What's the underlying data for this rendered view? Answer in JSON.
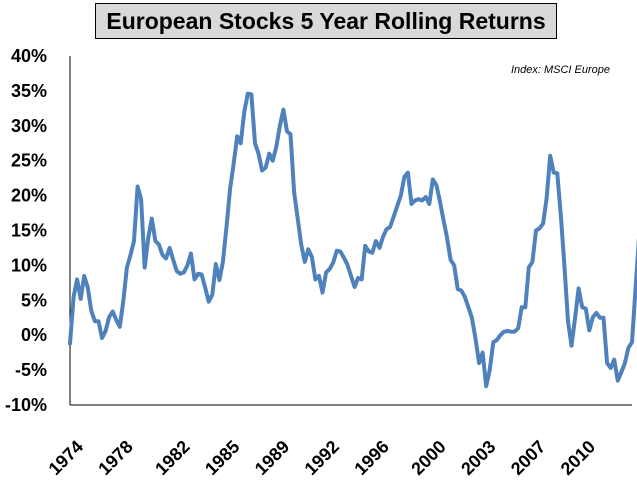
{
  "chart_data": {
    "type": "line",
    "title": "European Stocks 5 Year Rolling Returns",
    "annotation": "Index: MSCI Europe",
    "ylim": [
      -0.1,
      0.4
    ],
    "y_ticks": [
      {
        "value": 0.4,
        "label": "40%"
      },
      {
        "value": 0.35,
        "label": "35%"
      },
      {
        "value": 0.3,
        "label": "30%"
      },
      {
        "value": 0.25,
        "label": "25%"
      },
      {
        "value": 0.2,
        "label": "20%"
      },
      {
        "value": 0.15,
        "label": "15%"
      },
      {
        "value": 0.1,
        "label": "10%"
      },
      {
        "value": 0.05,
        "label": "5%"
      },
      {
        "value": 0.0,
        "label": "0%"
      },
      {
        "value": -0.05,
        "label": "-5%"
      },
      {
        "value": -0.1,
        "label": "-10%"
      }
    ],
    "xlim": [
      1974.0,
      2013.5
    ],
    "x_ticks": [
      {
        "value": 1974.0,
        "label": "1974"
      },
      {
        "value": 1977.5,
        "label": "1978"
      },
      {
        "value": 1981.5,
        "label": "1982"
      },
      {
        "value": 1985.0,
        "label": "1985"
      },
      {
        "value": 1988.5,
        "label": "1989"
      },
      {
        "value": 1992.0,
        "label": "1992"
      },
      {
        "value": 1995.5,
        "label": "1996"
      },
      {
        "value": 1999.5,
        "label": "2000"
      },
      {
        "value": 2003.0,
        "label": "2003"
      },
      {
        "value": 2006.5,
        "label": "2007"
      },
      {
        "value": 2010.0,
        "label": "2010"
      }
    ],
    "grid": false,
    "line_color": "#4f81bd",
    "series": [
      {
        "points": [
          [
            1974.0,
            -0.012
          ],
          [
            1974.25,
            0.055
          ],
          [
            1974.5,
            0.08
          ],
          [
            1974.75,
            0.052
          ],
          [
            1975.0,
            0.085
          ],
          [
            1975.25,
            0.068
          ],
          [
            1975.5,
            0.035
          ],
          [
            1975.75,
            0.02
          ],
          [
            1976.0,
            0.02
          ],
          [
            1976.25,
            -0.004
          ],
          [
            1976.5,
            0.006
          ],
          [
            1976.75,
            0.026
          ],
          [
            1977.0,
            0.034
          ],
          [
            1977.25,
            0.022
          ],
          [
            1977.5,
            0.012
          ],
          [
            1977.75,
            0.05
          ],
          [
            1978.0,
            0.097
          ],
          [
            1978.25,
            0.115
          ],
          [
            1978.5,
            0.135
          ],
          [
            1978.75,
            0.213
          ],
          [
            1979.0,
            0.195
          ],
          [
            1979.25,
            0.097
          ],
          [
            1979.5,
            0.14
          ],
          [
            1979.75,
            0.167
          ],
          [
            1980.0,
            0.135
          ],
          [
            1980.25,
            0.13
          ],
          [
            1980.5,
            0.115
          ],
          [
            1980.75,
            0.11
          ],
          [
            1981.0,
            0.125
          ],
          [
            1981.25,
            0.108
          ],
          [
            1981.5,
            0.092
          ],
          [
            1981.75,
            0.088
          ],
          [
            1982.0,
            0.09
          ],
          [
            1982.25,
            0.1
          ],
          [
            1982.5,
            0.117
          ],
          [
            1982.75,
            0.08
          ],
          [
            1983.0,
            0.088
          ],
          [
            1983.25,
            0.087
          ],
          [
            1983.5,
            0.068
          ],
          [
            1983.75,
            0.048
          ],
          [
            1984.0,
            0.058
          ],
          [
            1984.25,
            0.102
          ],
          [
            1984.5,
            0.079
          ],
          [
            1984.75,
            0.105
          ],
          [
            1985.0,
            0.155
          ],
          [
            1985.25,
            0.21
          ],
          [
            1985.5,
            0.245
          ],
          [
            1985.75,
            0.285
          ],
          [
            1986.0,
            0.275
          ],
          [
            1986.25,
            0.32
          ],
          [
            1986.5,
            0.346
          ],
          [
            1986.75,
            0.345
          ],
          [
            1987.0,
            0.275
          ],
          [
            1987.25,
            0.26
          ],
          [
            1987.5,
            0.236
          ],
          [
            1987.75,
            0.24
          ],
          [
            1988.0,
            0.26
          ],
          [
            1988.25,
            0.25
          ],
          [
            1988.5,
            0.27
          ],
          [
            1988.75,
            0.3
          ],
          [
            1989.0,
            0.323
          ],
          [
            1989.25,
            0.292
          ],
          [
            1989.5,
            0.288
          ],
          [
            1989.75,
            0.205
          ],
          [
            1990.0,
            0.168
          ],
          [
            1990.25,
            0.13
          ],
          [
            1990.5,
            0.105
          ],
          [
            1990.75,
            0.123
          ],
          [
            1991.0,
            0.112
          ],
          [
            1991.25,
            0.08
          ],
          [
            1991.5,
            0.085
          ],
          [
            1991.75,
            0.061
          ],
          [
            1992.0,
            0.09
          ],
          [
            1992.25,
            0.095
          ],
          [
            1992.5,
            0.104
          ],
          [
            1992.75,
            0.121
          ],
          [
            1993.0,
            0.12
          ],
          [
            1993.25,
            0.111
          ],
          [
            1993.5,
            0.101
          ],
          [
            1993.75,
            0.085
          ],
          [
            1994.0,
            0.069
          ],
          [
            1994.25,
            0.082
          ],
          [
            1994.5,
            0.08
          ],
          [
            1994.75,
            0.128
          ],
          [
            1995.0,
            0.12
          ],
          [
            1995.25,
            0.118
          ],
          [
            1995.5,
            0.135
          ],
          [
            1995.75,
            0.125
          ],
          [
            1996.0,
            0.141
          ],
          [
            1996.25,
            0.152
          ],
          [
            1996.5,
            0.155
          ],
          [
            1996.75,
            0.17
          ],
          [
            1997.0,
            0.185
          ],
          [
            1997.25,
            0.2
          ],
          [
            1997.5,
            0.227
          ],
          [
            1997.75,
            0.233
          ],
          [
            1998.0,
            0.188
          ],
          [
            1998.25,
            0.193
          ],
          [
            1998.5,
            0.195
          ],
          [
            1998.75,
            0.193
          ],
          [
            1999.0,
            0.198
          ],
          [
            1999.25,
            0.188
          ],
          [
            1999.5,
            0.223
          ],
          [
            1999.75,
            0.215
          ],
          [
            2000.0,
            0.192
          ],
          [
            2000.25,
            0.165
          ],
          [
            2000.5,
            0.14
          ],
          [
            2000.75,
            0.108
          ],
          [
            2001.0,
            0.1
          ],
          [
            2001.25,
            0.066
          ],
          [
            2001.5,
            0.064
          ],
          [
            2001.75,
            0.055
          ],
          [
            2002.0,
            0.04
          ],
          [
            2002.25,
            0.025
          ],
          [
            2002.5,
            -0.005
          ],
          [
            2002.75,
            -0.04
          ],
          [
            2003.0,
            -0.025
          ],
          [
            2003.25,
            -0.073
          ],
          [
            2003.5,
            -0.05
          ],
          [
            2003.75,
            -0.01
          ],
          [
            2004.0,
            -0.007
          ],
          [
            2004.25,
            0.0
          ],
          [
            2004.5,
            0.005
          ],
          [
            2004.75,
            0.006
          ],
          [
            2005.0,
            0.005
          ],
          [
            2005.25,
            0.005
          ],
          [
            2005.5,
            0.01
          ],
          [
            2005.75,
            0.04
          ],
          [
            2006.0,
            0.04
          ],
          [
            2006.25,
            0.097
          ],
          [
            2006.5,
            0.105
          ],
          [
            2006.75,
            0.15
          ],
          [
            2007.0,
            0.153
          ],
          [
            2007.25,
            0.16
          ],
          [
            2007.5,
            0.196
          ],
          [
            2007.75,
            0.257
          ],
          [
            2008.0,
            0.233
          ],
          [
            2008.25,
            0.232
          ],
          [
            2008.5,
            0.17
          ],
          [
            2008.75,
            0.1
          ],
          [
            2009.0,
            0.02
          ],
          [
            2009.25,
            -0.015
          ],
          [
            2009.5,
            0.025
          ],
          [
            2009.75,
            0.067
          ],
          [
            2010.0,
            0.04
          ],
          [
            2010.25,
            0.038
          ],
          [
            2010.5,
            0.007
          ],
          [
            2010.75,
            0.026
          ],
          [
            2011.0,
            0.032
          ],
          [
            2011.25,
            0.025
          ],
          [
            2011.5,
            0.025
          ],
          [
            2011.75,
            -0.04
          ],
          [
            2012.0,
            -0.047
          ],
          [
            2012.25,
            -0.035
          ],
          [
            2012.5,
            -0.065
          ],
          [
            2012.75,
            -0.053
          ],
          [
            2013.0,
            -0.04
          ],
          [
            2013.25,
            -0.018
          ],
          [
            2013.5,
            -0.01
          ],
          [
            2013.75,
            0.068
          ],
          [
            2014.0,
            0.142
          ]
        ]
      }
    ]
  }
}
